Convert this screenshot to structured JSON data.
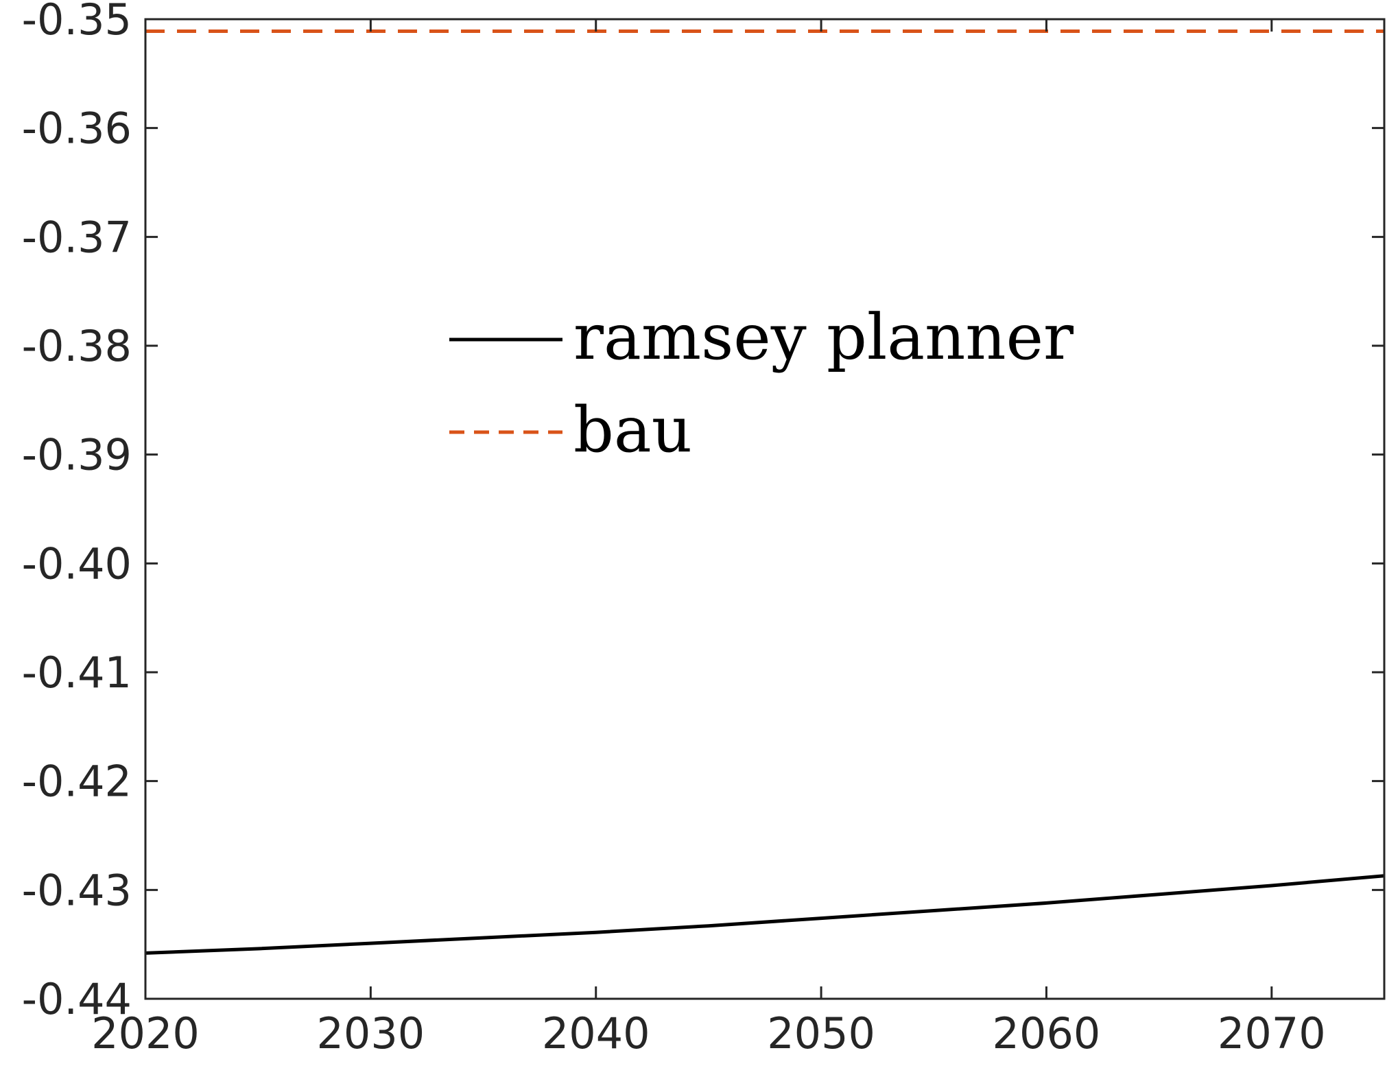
{
  "chart_data": {
    "type": "line",
    "title": "",
    "xlabel": "",
    "ylabel": "",
    "xlim": [
      2020,
      2075
    ],
    "ylim": [
      -0.44,
      -0.35
    ],
    "x_ticks": [
      2020,
      2030,
      2040,
      2050,
      2060,
      2070
    ],
    "y_ticks": [
      -0.35,
      -0.36,
      -0.37,
      -0.38,
      -0.39,
      -0.4,
      -0.41,
      -0.42,
      -0.43,
      -0.44
    ],
    "x_tick_labels": [
      "2020",
      "2030",
      "2040",
      "2050",
      "2060",
      "2070"
    ],
    "y_tick_labels": [
      "-0.35",
      "-0.36",
      "-0.37",
      "-0.38",
      "-0.39",
      "-0.40",
      "-0.41",
      "-0.42",
      "-0.43",
      "-0.44"
    ],
    "grid": false,
    "legend_position": "center-left",
    "series": [
      {
        "name": "ramsey planner",
        "color": "#000000",
        "line_style": "solid",
        "x": [
          2020,
          2025,
          2030,
          2035,
          2040,
          2045,
          2050,
          2055,
          2060,
          2065,
          2070,
          2075
        ],
        "y": [
          -0.4358,
          -0.4354,
          -0.4349,
          -0.4344,
          -0.4339,
          -0.4333,
          -0.4326,
          -0.4319,
          -0.4312,
          -0.4304,
          -0.4296,
          -0.4287
        ]
      },
      {
        "name": "bau",
        "color": "#D95319",
        "line_style": "dashed",
        "x": [
          2020,
          2075
        ],
        "y": [
          -0.3511,
          -0.3511
        ]
      }
    ]
  }
}
